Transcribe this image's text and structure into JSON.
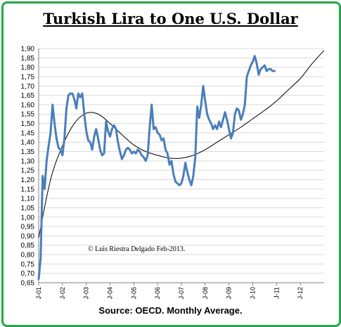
{
  "title": "Turkish Lira to One U.S. Dollar",
  "source": "Source: OECD. Monthly Average.",
  "copyright": "© Luis Riestra Delgado Feb-2013.",
  "colors": {
    "series": "#4a7ebb",
    "trend": "#000000",
    "frame": "#22a84a",
    "grid": "#d9d9d9"
  },
  "chart_data": {
    "type": "line",
    "title": "Turkish Lira to One U.S. Dollar",
    "xlabel": "",
    "ylabel": "",
    "ylim": [
      0.65,
      1.9
    ],
    "grid": true,
    "y_ticks": [
      "1,90",
      "1,85",
      "1,80",
      "1,75",
      "1,70",
      "1,65",
      "1,60",
      "1,55",
      "1,50",
      "1,45",
      "1,40",
      "1,35",
      "1,30",
      "1,25",
      "1,20",
      "1,15",
      "1,10",
      "1,05",
      "1,00",
      "0,95",
      "0,90",
      "0,85",
      "0,80",
      "0,75",
      "0,70",
      "0,65"
    ],
    "x_ticks": [
      "J-01",
      "J-02",
      "J-03",
      "J-04",
      "J-05",
      "J-06",
      "J-07",
      "J-08",
      "J-09",
      "J-10",
      "J-11",
      "J-12"
    ],
    "x_start": "2001-01",
    "x_end": "2013-01",
    "series": [
      {
        "name": "",
        "kind": "monthly",
        "values": [
          0.67,
          0.78,
          1.22,
          1.15,
          1.3,
          1.38,
          1.45,
          1.6,
          1.5,
          1.42,
          1.37,
          1.36,
          1.33,
          1.42,
          1.58,
          1.65,
          1.66,
          1.66,
          1.63,
          1.58,
          1.66,
          1.64,
          1.66,
          1.55,
          1.46,
          1.41,
          1.4,
          1.36,
          1.43,
          1.47,
          1.42,
          1.36,
          1.33,
          1.34,
          1.51,
          1.46,
          1.43,
          1.47,
          1.49,
          1.47,
          1.4,
          1.35,
          1.31,
          1.33,
          1.36,
          1.37,
          1.36,
          1.34,
          1.35,
          1.34,
          1.36,
          1.35,
          1.33,
          1.32,
          1.3,
          1.33,
          1.48,
          1.6,
          1.47,
          1.48,
          1.45,
          1.44,
          1.41,
          1.42,
          1.36,
          1.34,
          1.28,
          1.3,
          1.23,
          1.19,
          1.18,
          1.17,
          1.18,
          1.22,
          1.29,
          1.24,
          1.2,
          1.17,
          1.22,
          1.32,
          1.59,
          1.53,
          1.6,
          1.7,
          1.62,
          1.55,
          1.52,
          1.5,
          1.47,
          1.49,
          1.47,
          1.51,
          1.48,
          1.52,
          1.56,
          1.52,
          1.47,
          1.42,
          1.45,
          1.55,
          1.58,
          1.57,
          1.52,
          1.55,
          1.6,
          1.75,
          1.78,
          1.81,
          1.83,
          1.86,
          1.82,
          1.76,
          1.79,
          1.8,
          1.81,
          1.78,
          1.79,
          1.79,
          1.78,
          1.78
        ]
      },
      {
        "name": "",
        "kind": "trendline",
        "points": [
          [
            2001.0,
            0.89
          ],
          [
            2001.5,
            1.2
          ],
          [
            2002.0,
            1.38
          ],
          [
            2002.5,
            1.5
          ],
          [
            2003.0,
            1.555
          ],
          [
            2003.5,
            1.55
          ],
          [
            2004.0,
            1.5
          ],
          [
            2004.5,
            1.44
          ],
          [
            2005.0,
            1.385
          ],
          [
            2005.5,
            1.35
          ],
          [
            2006.0,
            1.33
          ],
          [
            2006.5,
            1.315
          ],
          [
            2007.0,
            1.315
          ],
          [
            2007.5,
            1.33
          ],
          [
            2008.0,
            1.36
          ],
          [
            2008.5,
            1.4
          ],
          [
            2009.0,
            1.44
          ],
          [
            2009.5,
            1.48
          ],
          [
            2010.0,
            1.525
          ],
          [
            2010.5,
            1.57
          ],
          [
            2011.0,
            1.62
          ],
          [
            2011.5,
            1.68
          ],
          [
            2012.0,
            1.74
          ],
          [
            2012.5,
            1.82
          ],
          [
            2013.0,
            1.89
          ]
        ]
      }
    ]
  }
}
